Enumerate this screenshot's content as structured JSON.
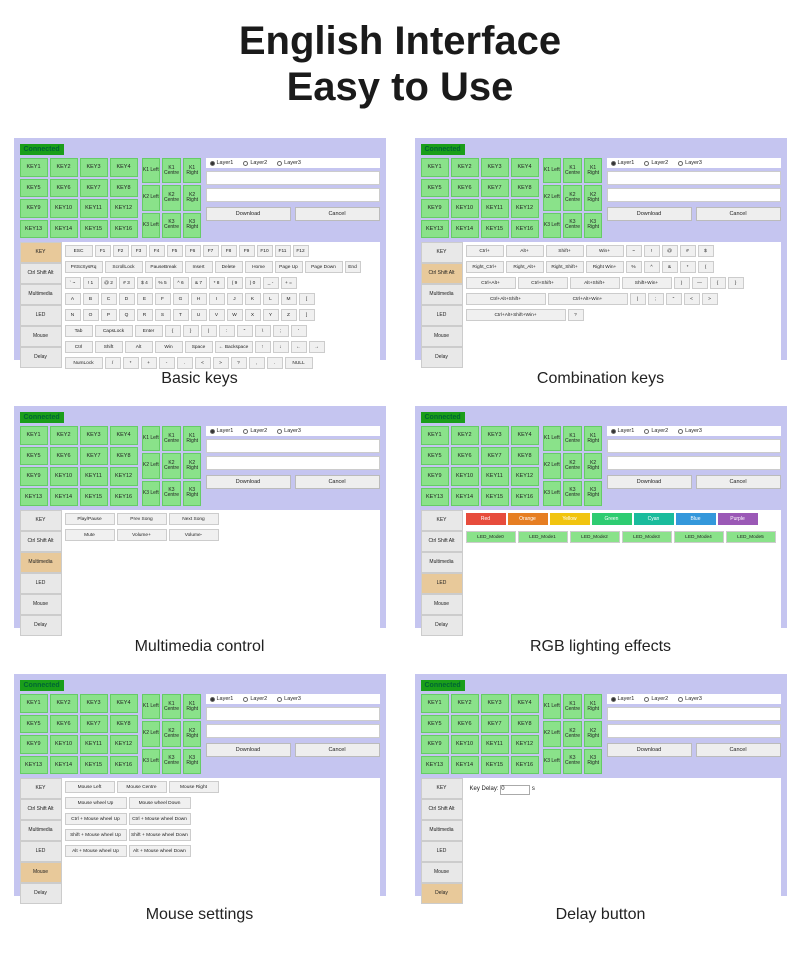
{
  "title_line1": "English Interface",
  "title_line2": "Easy to Use",
  "status": "Connected",
  "layers": [
    "Layer1",
    "Layer2",
    "Layer3"
  ],
  "keys16": [
    "KEY1",
    "KEY2",
    "KEY3",
    "KEY4",
    "KEY5",
    "KEY6",
    "KEY7",
    "KEY8",
    "KEY9",
    "KEY10",
    "KEY11",
    "KEY12",
    "KEY13",
    "KEY14",
    "KEY15",
    "KEY16"
  ],
  "knobs": [
    "K1 Left",
    "K1 Centre",
    "K1 Right",
    "K2 Left",
    "K2 Centre",
    "K2 Right",
    "K3 Left",
    "K3 Centre",
    "K3 Right"
  ],
  "download": "Download",
  "cancel": "Cancel",
  "side_tabs": [
    "KEY",
    "Ctrl Shift Alt",
    "Multimedia",
    "LED",
    "Mouse",
    "Delay"
  ],
  "panels": [
    {
      "caption": "Basic keys",
      "active_tab": 0,
      "rows": [
        [
          {
            "t": "ESC",
            "w": 2
          },
          {
            "t": "F1",
            "w": 1
          },
          {
            "t": "F2",
            "w": 1
          },
          {
            "t": "F3",
            "w": 1
          },
          {
            "t": "F4",
            "w": 1
          },
          {
            "t": "F5",
            "w": 1
          },
          {
            "t": "F6",
            "w": 1
          },
          {
            "t": "F7",
            "w": 1
          },
          {
            "t": "F8",
            "w": 1
          },
          {
            "t": "F9",
            "w": 1
          },
          {
            "t": "F10",
            "w": 1
          },
          {
            "t": "F11",
            "w": 1
          },
          {
            "t": "F12",
            "w": 1
          }
        ],
        [
          {
            "t": "PrtScSysRq",
            "w": 3
          },
          {
            "t": "ScrollLock",
            "w": 3
          },
          {
            "t": "PauseBreak",
            "w": 3
          },
          {
            "t": "Insert",
            "w": 2
          },
          {
            "t": "Delete",
            "w": 2
          },
          {
            "t": "Home",
            "w": 2
          },
          {
            "t": "Page Up",
            "w": 2
          },
          {
            "t": "Page Down",
            "w": 3
          },
          {
            "t": "End",
            "w": 1
          }
        ],
        [
          {
            "t": "` ~",
            "w": 1
          },
          {
            "t": "! 1",
            "w": 1
          },
          {
            "t": "@ 2",
            "w": 1
          },
          {
            "t": "# 3",
            "w": 1
          },
          {
            "t": "$ 4",
            "w": 1
          },
          {
            "t": "% 5",
            "w": 1
          },
          {
            "t": "^ 6",
            "w": 1
          },
          {
            "t": "& 7",
            "w": 1
          },
          {
            "t": "* 8",
            "w": 1
          },
          {
            "t": "( 9",
            "w": 1
          },
          {
            "t": ") 0",
            "w": 1
          },
          {
            "t": "_ -",
            "w": 1
          },
          {
            "t": "+ =",
            "w": 1
          }
        ],
        [
          {
            "t": "A",
            "w": 1
          },
          {
            "t": "B",
            "w": 1
          },
          {
            "t": "C",
            "w": 1
          },
          {
            "t": "D",
            "w": 1
          },
          {
            "t": "E",
            "w": 1
          },
          {
            "t": "F",
            "w": 1
          },
          {
            "t": "G",
            "w": 1
          },
          {
            "t": "H",
            "w": 1
          },
          {
            "t": "I",
            "w": 1
          },
          {
            "t": "J",
            "w": 1
          },
          {
            "t": "K",
            "w": 1
          },
          {
            "t": "L",
            "w": 1
          },
          {
            "t": "M",
            "w": 1
          },
          {
            "t": "[",
            "w": 1
          }
        ],
        [
          {
            "t": "N",
            "w": 1
          },
          {
            "t": "O",
            "w": 1
          },
          {
            "t": "P",
            "w": 1
          },
          {
            "t": "Q",
            "w": 1
          },
          {
            "t": "R",
            "w": 1
          },
          {
            "t": "S",
            "w": 1
          },
          {
            "t": "T",
            "w": 1
          },
          {
            "t": "U",
            "w": 1
          },
          {
            "t": "V",
            "w": 1
          },
          {
            "t": "W",
            "w": 1
          },
          {
            "t": "X",
            "w": 1
          },
          {
            "t": "Y",
            "w": 1
          },
          {
            "t": "Z",
            "w": 1
          },
          {
            "t": "]",
            "w": 1
          }
        ],
        [
          {
            "t": "Tab",
            "w": 2
          },
          {
            "t": "CapsLock",
            "w": 3
          },
          {
            "t": "Enter",
            "w": 2
          },
          {
            "t": "{",
            "w": 1
          },
          {
            "t": "}",
            "w": 1
          },
          {
            "t": "|",
            "w": 1
          },
          {
            "t": ":",
            "w": 1
          },
          {
            "t": "\"",
            "w": 1
          },
          {
            "t": "\\",
            "w": 1
          },
          {
            "t": ";",
            "w": 1
          },
          {
            "t": "'",
            "w": 1
          }
        ],
        [
          {
            "t": "Ctrl",
            "w": 2
          },
          {
            "t": "Shift",
            "w": 2
          },
          {
            "t": "Alt",
            "w": 2
          },
          {
            "t": "Win",
            "w": 2
          },
          {
            "t": "Space",
            "w": 2
          },
          {
            "t": "← Backspace",
            "w": 3
          },
          {
            "t": "↑",
            "w": 1
          },
          {
            "t": "↓",
            "w": 1
          },
          {
            "t": "←",
            "w": 1
          },
          {
            "t": "→",
            "w": 1
          }
        ],
        [
          {
            "t": "NumLock",
            "w": 3
          },
          {
            "t": "/",
            "w": 1
          },
          {
            "t": "*",
            "w": 1
          },
          {
            "t": "+",
            "w": 1
          },
          {
            "t": "-",
            "w": 1
          },
          {
            "t": ".",
            "w": 1
          },
          {
            "t": "<",
            "w": 1
          },
          {
            "t": ">",
            "w": 1
          },
          {
            "t": "?",
            "w": 1
          },
          {
            "t": ",",
            "w": 1
          },
          {
            "t": ".",
            "w": 1
          },
          {
            "t": "NULL",
            "w": 2
          }
        ]
      ]
    },
    {
      "caption": "Combination keys",
      "active_tab": 1,
      "rows": [
        [
          {
            "t": "Ctrl+",
            "w": 3
          },
          {
            "t": "Alt+",
            "w": 3
          },
          {
            "t": "Shift+",
            "w": 3
          },
          {
            "t": "Win+",
            "w": 3
          },
          {
            "t": "~",
            "w": 1
          },
          {
            "t": "!",
            "w": 1
          },
          {
            "t": "@",
            "w": 1
          },
          {
            "t": "#",
            "w": 1
          },
          {
            "t": "$",
            "w": 1
          }
        ],
        [
          {
            "t": "Right_Ctrl+",
            "w": 3
          },
          {
            "t": "Right_Alt+",
            "w": 3
          },
          {
            "t": "Right_Shift+",
            "w": 3
          },
          {
            "t": "Right Win+",
            "w": 3
          },
          {
            "t": "%",
            "w": 1
          },
          {
            "t": "^",
            "w": 1
          },
          {
            "t": "&",
            "w": 1
          },
          {
            "t": "*",
            "w": 1
          },
          {
            "t": "(",
            "w": 1
          }
        ],
        [
          {
            "t": "Ctrl+Alt+",
            "w": 4
          },
          {
            "t": "Ctrl+Shift+",
            "w": 4
          },
          {
            "t": "Alt+Shift+",
            "w": 4
          },
          {
            "t": "Shift+Win+",
            "w": 4
          },
          {
            "t": ")",
            "w": 1
          },
          {
            "t": "—",
            "w": 1
          },
          {
            "t": "{",
            "w": 1
          },
          {
            "t": "}",
            "w": 1
          }
        ],
        [
          {
            "t": "Ctrl+Alt+Shift+",
            "w": 6
          },
          {
            "t": "Ctrl+Alt+Win+",
            "w": 6
          },
          {
            "t": "|",
            "w": 1
          },
          {
            "t": ";",
            "w": 1
          },
          {
            "t": "\"",
            "w": 1
          },
          {
            "t": "<",
            "w": 1
          },
          {
            "t": ">",
            "w": 1
          }
        ],
        [
          {
            "t": "Ctrl+Alt+Shift+Win+",
            "w": 7
          },
          {
            "t": "?",
            "w": 1
          }
        ]
      ]
    },
    {
      "caption": "Multimedia control",
      "active_tab": 2,
      "rows": [
        [
          {
            "t": "Play/Pause",
            "w": 4
          },
          {
            "t": "Prev Song",
            "w": 4
          },
          {
            "t": "Next Song",
            "w": 4
          }
        ],
        [
          {
            "t": "Mute",
            "w": 4
          },
          {
            "t": "Volume+",
            "w": 4
          },
          {
            "t": "Volume-",
            "w": 4
          }
        ]
      ]
    },
    {
      "caption": "RGB lighting effects",
      "active_tab": 3,
      "colors": [
        {
          "t": "Red",
          "c": "#e74c3c"
        },
        {
          "t": "Orange",
          "c": "#e67e22"
        },
        {
          "t": "Yellow",
          "c": "#f1c40f"
        },
        {
          "t": "Green",
          "c": "#2ecc71"
        },
        {
          "t": "Cyan",
          "c": "#1abc9c"
        },
        {
          "t": "Blue",
          "c": "#3498db"
        },
        {
          "t": "Purple",
          "c": "#9b59b6"
        }
      ],
      "modes": [
        "LED_Mode0",
        "LED_Mode1",
        "LED_Mode2",
        "LED_Mode3",
        "LED_Mode4",
        "LED_Mode5"
      ]
    },
    {
      "caption": "Mouse settings",
      "active_tab": 4,
      "rows": [
        [
          {
            "t": "Mouse Left",
            "w": 4
          },
          {
            "t": "Mouse Centre",
            "w": 4
          },
          {
            "t": "Mouse Right",
            "w": 4
          }
        ],
        [
          {
            "t": "Mouse wheel Up",
            "w": 5
          },
          {
            "t": "Mouse wheel Down",
            "w": 5
          }
        ],
        [
          {
            "t": "Ctrl + Mouse wheel Up",
            "w": 5
          },
          {
            "t": "Ctrl + Mouse wheel Down",
            "w": 5
          }
        ],
        [
          {
            "t": "Shift + Mouse wheel Up",
            "w": 5
          },
          {
            "t": "Shift + Mouse wheel Down",
            "w": 5
          }
        ],
        [
          {
            "t": "Alt + Mouse wheel Up",
            "w": 5
          },
          {
            "t": "Alt + Mouse wheel Down",
            "w": 5
          }
        ]
      ]
    },
    {
      "caption": "Delay button",
      "active_tab": 5,
      "delay_label": "Key Delay:",
      "delay_value": "0",
      "delay_unit": "s"
    }
  ]
}
